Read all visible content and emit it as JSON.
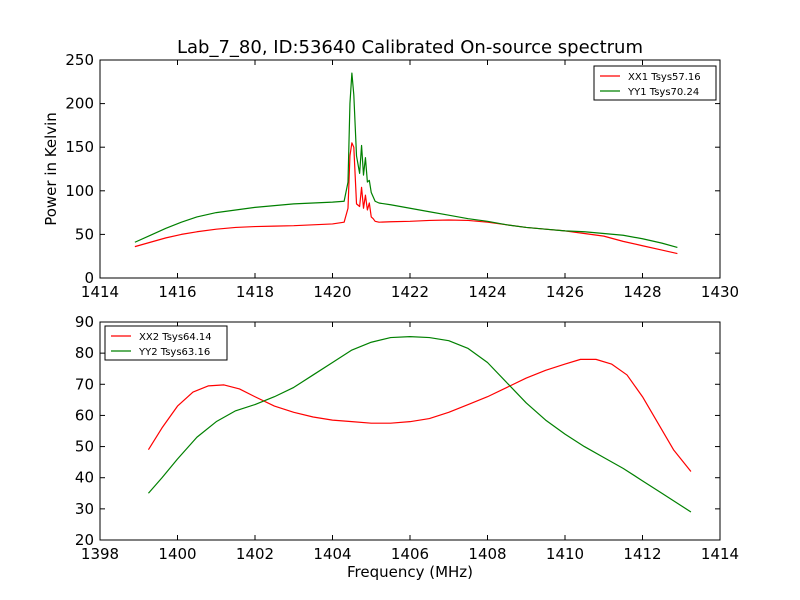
{
  "figure": {
    "title": "Lab_7_80, ID:53640 Calibrated On-source spectrum"
  },
  "chart_data": [
    {
      "type": "line",
      "title": "Lab_7_80, ID:53640 Calibrated On-source spectrum",
      "xlabel": "",
      "ylabel": "Power in Kelvin",
      "xlim": [
        1414,
        1430
      ],
      "ylim": [
        0,
        250
      ],
      "xticks": [
        1414,
        1416,
        1418,
        1420,
        1422,
        1424,
        1426,
        1428,
        1430
      ],
      "yticks": [
        0,
        50,
        100,
        150,
        200,
        250
      ],
      "grid": false,
      "legend": "top-right",
      "series": [
        {
          "name": "XX1 Tsys57.16",
          "color": "#ff0000",
          "x": [
            1414.9,
            1415.3,
            1415.7,
            1416.1,
            1416.5,
            1417.0,
            1417.5,
            1418.0,
            1418.5,
            1419.0,
            1419.5,
            1420.0,
            1420.3,
            1420.4,
            1420.45,
            1420.5,
            1420.55,
            1420.62,
            1420.7,
            1420.75,
            1420.8,
            1420.85,
            1420.9,
            1420.95,
            1421.0,
            1421.05,
            1421.1,
            1421.2,
            1421.5,
            1422.0,
            1422.5,
            1423.0,
            1423.5,
            1424.0,
            1424.5,
            1425.0,
            1425.5,
            1426.0,
            1426.5,
            1427.0,
            1427.5,
            1428.0,
            1428.5,
            1428.9
          ],
          "y": [
            36,
            41,
            46,
            50,
            53,
            56,
            58,
            59,
            59.5,
            60,
            61,
            62,
            64,
            80,
            140,
            155,
            150,
            85,
            82,
            104,
            80,
            95,
            78,
            86,
            70,
            68,
            65,
            64,
            64.5,
            65,
            66,
            66.5,
            66,
            64,
            61,
            58,
            56,
            54,
            51,
            48,
            42,
            37,
            32,
            28
          ]
        },
        {
          "name": "YY1 Tsys70.24",
          "color": "#008000",
          "x": [
            1414.9,
            1415.3,
            1415.7,
            1416.1,
            1416.5,
            1417.0,
            1417.5,
            1418.0,
            1418.5,
            1419.0,
            1419.5,
            1420.0,
            1420.3,
            1420.4,
            1420.45,
            1420.5,
            1420.55,
            1420.62,
            1420.7,
            1420.75,
            1420.8,
            1420.85,
            1420.9,
            1420.95,
            1421.0,
            1421.05,
            1421.1,
            1421.2,
            1421.5,
            1422.0,
            1422.5,
            1423.0,
            1423.5,
            1424.0,
            1424.5,
            1425.0,
            1425.5,
            1426.0,
            1426.5,
            1427.0,
            1427.5,
            1428.0,
            1428.5,
            1428.9
          ],
          "y": [
            41,
            49,
            57,
            64,
            70,
            75,
            78,
            81,
            83,
            85,
            86,
            87,
            88,
            110,
            200,
            235,
            210,
            140,
            120,
            152,
            118,
            138,
            110,
            112,
            98,
            93,
            88,
            86,
            84,
            80,
            76,
            72,
            68,
            65,
            61,
            58,
            56,
            54,
            53,
            51,
            49,
            45,
            40,
            35
          ]
        }
      ]
    },
    {
      "type": "line",
      "title": "",
      "xlabel": "Frequency (MHz)",
      "ylabel": "",
      "xlim": [
        1398,
        1414
      ],
      "ylim": [
        20,
        90
      ],
      "xticks": [
        1398,
        1400,
        1402,
        1404,
        1406,
        1408,
        1410,
        1412,
        1414
      ],
      "yticks": [
        20,
        30,
        40,
        50,
        60,
        70,
        80,
        90
      ],
      "grid": false,
      "legend": "top-left",
      "series": [
        {
          "name": "XX2 Tsys64.14",
          "color": "#ff0000",
          "x": [
            1399.25,
            1399.6,
            1400.0,
            1400.4,
            1400.8,
            1401.2,
            1401.6,
            1402.0,
            1402.5,
            1403.0,
            1403.5,
            1404.0,
            1404.5,
            1405.0,
            1405.5,
            1406.0,
            1406.5,
            1407.0,
            1407.5,
            1408.0,
            1408.5,
            1409.0,
            1409.5,
            1410.0,
            1410.4,
            1410.8,
            1411.2,
            1411.6,
            1412.0,
            1412.4,
            1412.8,
            1413.25
          ],
          "y": [
            49,
            56,
            63,
            67.5,
            69.5,
            69.8,
            68.5,
            66,
            63,
            61,
            59.5,
            58.5,
            58,
            57.5,
            57.5,
            58,
            59,
            61,
            63.5,
            66,
            69,
            72,
            74.5,
            76.5,
            78,
            78,
            76.5,
            73,
            66,
            57.5,
            49,
            42
          ]
        },
        {
          "name": "YY2 Tsys63.16",
          "color": "#008000",
          "x": [
            1399.25,
            1399.6,
            1400.0,
            1400.5,
            1401.0,
            1401.5,
            1402.0,
            1402.5,
            1403.0,
            1403.5,
            1404.0,
            1404.5,
            1405.0,
            1405.5,
            1406.0,
            1406.5,
            1407.0,
            1407.5,
            1408.0,
            1408.5,
            1409.0,
            1409.5,
            1410.0,
            1410.5,
            1411.0,
            1411.5,
            1412.0,
            1412.5,
            1413.0,
            1413.25
          ],
          "y": [
            35,
            40,
            46,
            53,
            58,
            61.5,
            63.5,
            66,
            69,
            73,
            77,
            81,
            83.5,
            85,
            85.3,
            85,
            84,
            81.5,
            77,
            70.5,
            64,
            58.5,
            54,
            50,
            46.5,
            43,
            39,
            35,
            31,
            29
          ]
        }
      ]
    }
  ]
}
